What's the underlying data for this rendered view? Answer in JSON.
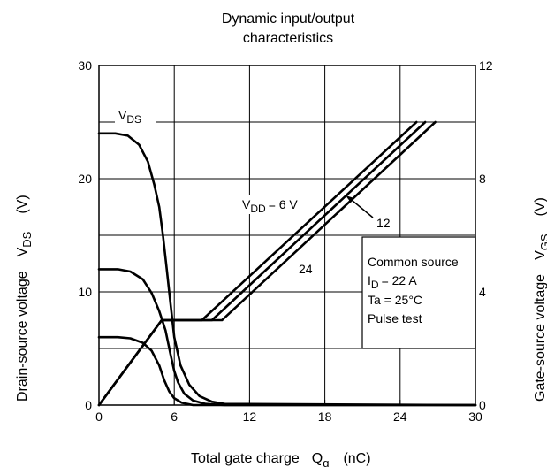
{
  "chart_data": {
    "type": "line",
    "title_lines": [
      "Dynamic input/output",
      "characteristics"
    ],
    "xlabel": "Total gate charge",
    "xlabel_symbol": "Q",
    "xlabel_sub": "g",
    "xlabel_unit": "(nC)",
    "ylabel_left": "Drain-source voltage",
    "ylabel_left_symbol": "V",
    "ylabel_left_sub": "DS",
    "ylabel_left_unit": "(V)",
    "ylabel_right": "Gate-source voltage",
    "ylabel_right_symbol": "V",
    "ylabel_right_sub": "GS",
    "ylabel_right_unit": "(V)",
    "xlim": [
      0,
      30
    ],
    "ylim_left": [
      0,
      30
    ],
    "ylim_right": [
      0,
      12
    ],
    "x_ticks": [
      "0",
      "6",
      "12",
      "18",
      "24",
      "30"
    ],
    "y_left_ticks": [
      "0",
      "10",
      "20",
      "30"
    ],
    "y_right_ticks": [
      "0",
      "4",
      "8",
      "12"
    ],
    "grid": true,
    "vds_label": {
      "symbol": "V",
      "sub": "DS"
    },
    "vdd_label": {
      "symbol": "V",
      "sub": "DD",
      "value": "= 6 V"
    },
    "curve_labels": [
      "12",
      "24"
    ],
    "info_box": {
      "line1": "Common source",
      "line2_symbol": "I",
      "line2_sub": "D",
      "line2_value": "= 22 A",
      "line3": "Ta = 25°C",
      "line4": "Pulse test"
    },
    "series": [
      {
        "axis": "left",
        "x": [
          0,
          1.5,
          2.5,
          3.5,
          4.2,
          4.8,
          5.2,
          5.6,
          6,
          6.6,
          7.5,
          9,
          30
        ],
        "y": [
          6,
          6,
          5.9,
          5.5,
          4.8,
          3.5,
          2.2,
          1.2,
          0.6,
          0.2,
          0,
          0,
          0
        ]
      },
      {
        "axis": "left",
        "x": [
          0,
          1.5,
          2.5,
          3.5,
          4.2,
          4.8,
          5.3,
          5.7,
          6,
          6.3,
          6.8,
          7.5,
          8.5,
          10,
          30
        ],
        "y": [
          12,
          12,
          11.8,
          11.1,
          9.9,
          8.3,
          6.6,
          4.5,
          3,
          2,
          1,
          0.4,
          0.1,
          0,
          0
        ]
      },
      {
        "axis": "left",
        "x": [
          0,
          1.3,
          2.3,
          3.2,
          3.9,
          4.4,
          4.8,
          5.1,
          5.4,
          5.7,
          6,
          6.5,
          7.2,
          8,
          9,
          10,
          30
        ],
        "y": [
          24,
          24,
          23.8,
          23,
          21.5,
          19.5,
          17.5,
          15,
          12,
          9,
          6,
          3.5,
          1.8,
          0.8,
          0.3,
          0.1,
          0
        ]
      },
      {
        "axis": "right",
        "x": [
          0,
          5,
          8.2,
          25.3
        ],
        "y": [
          0,
          3,
          3,
          10
        ]
      },
      {
        "axis": "right",
        "x": [
          0,
          5,
          9,
          26
        ],
        "y": [
          0,
          3,
          3,
          10
        ]
      },
      {
        "axis": "right",
        "x": [
          0,
          5,
          9.8,
          26.8
        ],
        "y": [
          0,
          3,
          3,
          10
        ]
      }
    ]
  }
}
